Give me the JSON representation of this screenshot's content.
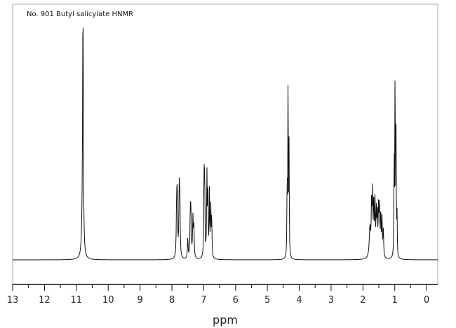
{
  "chart_data": {
    "type": "line",
    "title": "No. 901 Butyl salicylate HNMR",
    "xlabel": "ppm",
    "ylabel": "",
    "x_reversed": true,
    "xlim": [
      13.0,
      -0.35
    ],
    "ylim": [
      0,
      1.0
    ],
    "grid": false,
    "legend": "none",
    "x_ticks": [
      13,
      12,
      11,
      10,
      9,
      8,
      7,
      6,
      5,
      4,
      3,
      2,
      1,
      0
    ],
    "x_tick_labels": [
      "13",
      "12",
      "11",
      "10",
      "9",
      "8",
      "7",
      "6",
      "5",
      "4",
      "3",
      "2",
      "1",
      "0"
    ],
    "baseline": 0.0,
    "peaks": [
      {
        "ppm": 10.79,
        "height": 1.0,
        "width": 0.01
      },
      {
        "ppm": 10.8,
        "height": 0.3,
        "width": 0.025
      },
      {
        "ppm": 7.85,
        "height": 0.24,
        "width": 0.012
      },
      {
        "ppm": 7.83,
        "height": 0.25,
        "width": 0.012
      },
      {
        "ppm": 7.77,
        "height": 0.27,
        "width": 0.012
      },
      {
        "ppm": 7.75,
        "height": 0.25,
        "width": 0.012
      },
      {
        "ppm": 7.5,
        "height": 0.09,
        "width": 0.012
      },
      {
        "ppm": 7.42,
        "height": 0.2,
        "width": 0.012
      },
      {
        "ppm": 7.4,
        "height": 0.18,
        "width": 0.012
      },
      {
        "ppm": 7.34,
        "height": 0.17,
        "width": 0.012
      },
      {
        "ppm": 7.31,
        "height": 0.15,
        "width": 0.012
      },
      {
        "ppm": 6.99,
        "height": 0.36,
        "width": 0.01
      },
      {
        "ppm": 6.97,
        "height": 0.33,
        "width": 0.01
      },
      {
        "ppm": 6.9,
        "height": 0.36,
        "width": 0.01
      },
      {
        "ppm": 6.87,
        "height": 0.32,
        "width": 0.01
      },
      {
        "ppm": 6.82,
        "height": 0.28,
        "width": 0.01
      },
      {
        "ppm": 6.78,
        "height": 0.23,
        "width": 0.01
      },
      {
        "ppm": 6.75,
        "height": 0.18,
        "width": 0.01
      },
      {
        "ppm": 4.38,
        "height": 0.36,
        "width": 0.008
      },
      {
        "ppm": 4.35,
        "height": 0.82,
        "width": 0.008
      },
      {
        "ppm": 4.32,
        "height": 0.47,
        "width": 0.008
      },
      {
        "ppm": 1.78,
        "height": 0.13,
        "width": 0.025
      },
      {
        "ppm": 1.73,
        "height": 0.21,
        "width": 0.012
      },
      {
        "ppm": 1.7,
        "height": 0.26,
        "width": 0.012
      },
      {
        "ppm": 1.66,
        "height": 0.25,
        "width": 0.012
      },
      {
        "ppm": 1.62,
        "height": 0.23,
        "width": 0.012
      },
      {
        "ppm": 1.58,
        "height": 0.18,
        "width": 0.012
      },
      {
        "ppm": 1.55,
        "height": 0.19,
        "width": 0.012
      },
      {
        "ppm": 1.51,
        "height": 0.2,
        "width": 0.012
      },
      {
        "ppm": 1.48,
        "height": 0.2,
        "width": 0.012
      },
      {
        "ppm": 1.44,
        "height": 0.19,
        "width": 0.012
      },
      {
        "ppm": 1.4,
        "height": 0.16,
        "width": 0.012
      },
      {
        "ppm": 1.36,
        "height": 0.12,
        "width": 0.012
      },
      {
        "ppm": 1.02,
        "height": 0.47,
        "width": 0.008
      },
      {
        "ppm": 0.99,
        "height": 0.86,
        "width": 0.008
      },
      {
        "ppm": 0.96,
        "height": 0.51,
        "width": 0.008
      },
      {
        "ppm": 0.93,
        "height": 0.19,
        "width": 0.008
      }
    ]
  },
  "colors": {
    "line": "#111111",
    "axis": "#111111",
    "frame": "#aaaaaa",
    "background": "#ffffff"
  }
}
